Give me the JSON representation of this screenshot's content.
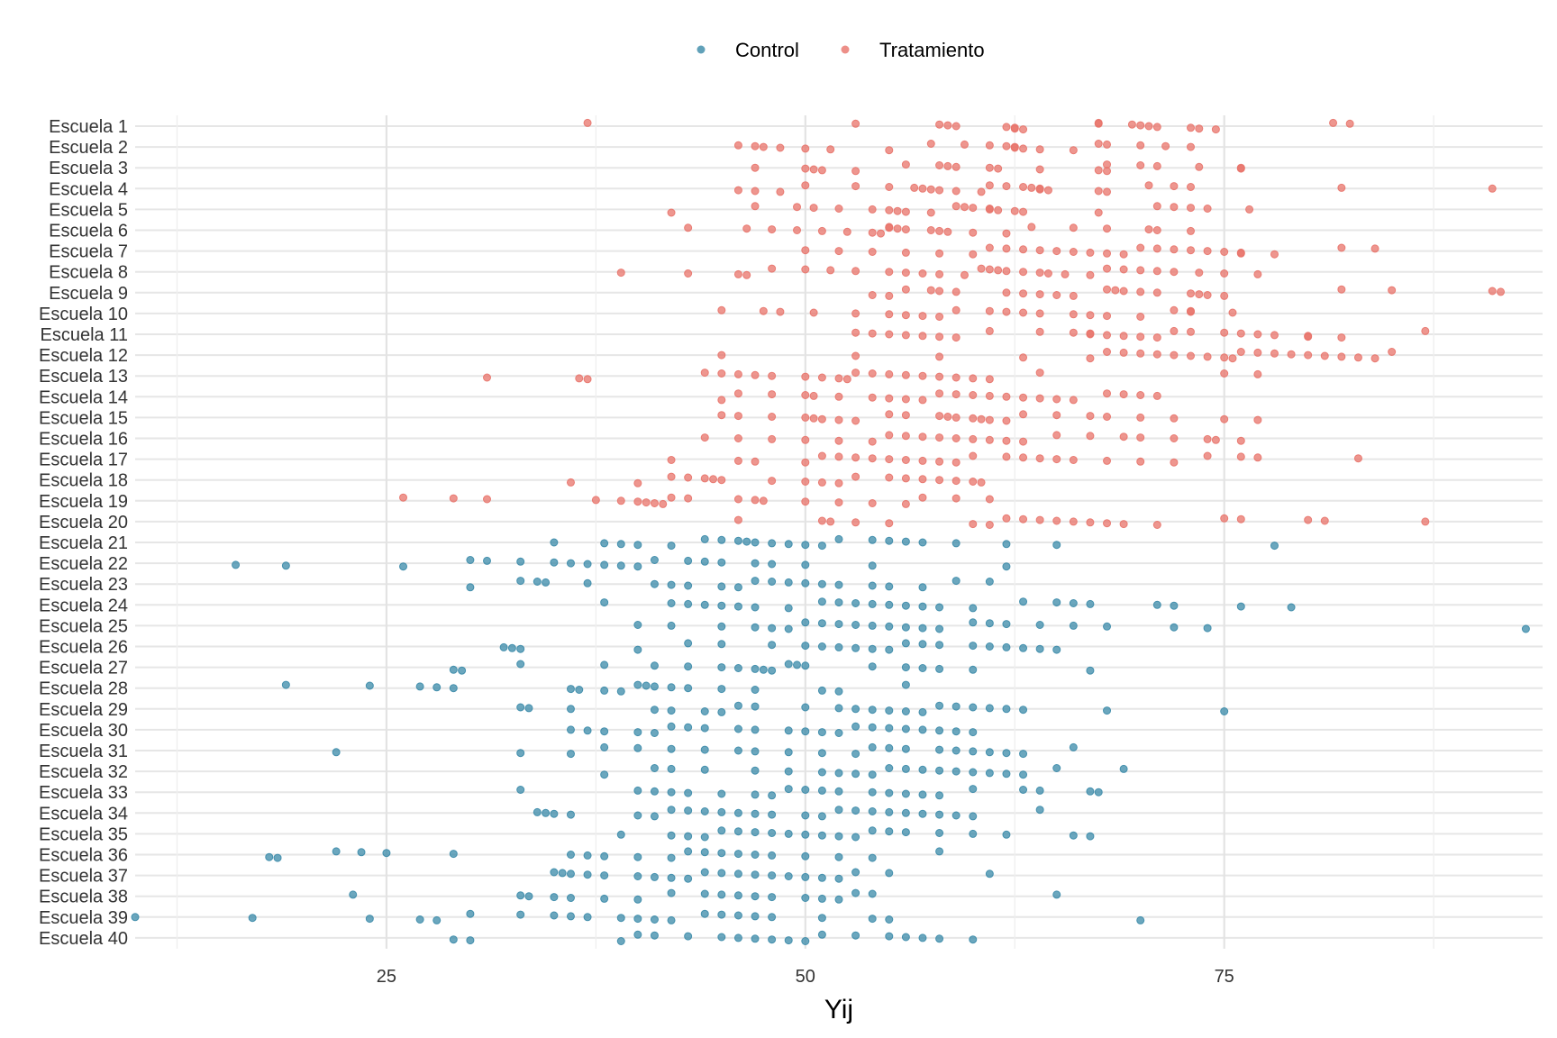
{
  "chart_data": {
    "type": "scatter",
    "title": "",
    "xlabel": "Yij",
    "ylabel": "",
    "xlim": [
      10,
      94
    ],
    "x_ticks": [
      "25",
      "50",
      "75"
    ],
    "x_tick_values": [
      25,
      50,
      75
    ],
    "grid": true,
    "legend_placement": "top",
    "categories": [
      "Escuela 1",
      "Escuela 2",
      "Escuela 3",
      "Escuela 4",
      "Escuela 5",
      "Escuela 6",
      "Escuela 7",
      "Escuela 8",
      "Escuela 9",
      "Escuela 10",
      "Escuela 11",
      "Escuela 12",
      "Escuela 13",
      "Escuela 14",
      "Escuela 15",
      "Escuela 16",
      "Escuela 17",
      "Escuela 18",
      "Escuela 19",
      "Escuela 20",
      "Escuela 21",
      "Escuela 22",
      "Escuela 23",
      "Escuela 24",
      "Escuela 25",
      "Escuela 26",
      "Escuela 27",
      "Escuela 28",
      "Escuela 29",
      "Escuela 30",
      "Escuela 31",
      "Escuela 32",
      "Escuela 33",
      "Escuela 34",
      "Escuela 35",
      "Escuela 36",
      "Escuela 37",
      "Escuela 38",
      "Escuela 39",
      "Escuela 40"
    ],
    "series": [
      {
        "name": "Control",
        "color": "#3a8aa8"
      },
      {
        "name": "Tratamiento",
        "color": "#e8736a"
      }
    ],
    "points": {
      "Escuela 1": [
        37,
        53,
        58,
        58.5,
        59,
        62,
        62.5,
        62.5,
        63,
        67.5,
        67.5,
        69.5,
        70,
        70.5,
        71,
        73,
        73.5,
        74.5,
        81.5,
        82.5
      ],
      "Escuela 2": [
        46,
        47,
        47.5,
        48.5,
        50,
        51.5,
        55,
        57.5,
        59.5,
        61,
        62,
        62.5,
        62.5,
        63,
        64,
        66,
        67.5,
        68,
        70,
        71.5,
        73
      ],
      "Escuela 3": [
        47,
        50,
        50.5,
        51,
        53,
        56,
        58,
        58.5,
        59,
        61,
        61.5,
        64,
        67.5,
        68,
        68,
        70,
        71,
        73.5,
        76,
        76
      ],
      "Escuela 4": [
        46,
        47,
        48.5,
        50,
        53,
        55,
        56.5,
        57,
        57.5,
        58,
        59,
        60.5,
        61,
        62,
        63,
        63.5,
        64,
        64,
        64.5,
        67.5,
        68,
        70.5,
        72,
        73,
        82,
        91
      ],
      "Escuela 5": [
        42,
        47,
        49.5,
        50.5,
        52,
        54,
        55,
        55.5,
        56,
        57.5,
        59,
        59.5,
        60,
        61,
        61,
        61.5,
        62.5,
        63,
        67.5,
        71,
        72,
        73,
        74,
        76.5
      ],
      "Escuela 6": [
        43,
        46.5,
        48,
        49.5,
        51,
        52.5,
        54,
        54.5,
        55,
        55,
        55.5,
        56,
        57.5,
        58,
        58.5,
        60,
        62,
        63.5,
        66,
        68,
        70.5,
        71,
        73
      ],
      "Escuela 7": [
        50,
        52,
        54,
        56,
        58,
        60,
        61,
        62,
        63,
        64,
        65,
        66,
        67,
        68,
        69,
        70,
        71,
        72,
        73,
        74,
        75,
        76,
        76,
        78,
        82,
        84
      ],
      "Escuela 8": [
        39,
        43,
        46,
        46.5,
        48,
        50,
        51.5,
        53,
        55,
        56,
        57,
        58,
        59.5,
        60.5,
        61,
        61.5,
        62,
        63,
        64,
        64.5,
        65.5,
        67,
        68,
        69,
        70,
        71,
        72,
        73.5,
        75,
        77
      ],
      "Escuela 9": [
        54,
        55,
        56,
        57.5,
        58,
        59,
        62,
        63,
        64,
        65,
        66,
        68,
        68.5,
        69,
        70,
        71,
        73,
        73.5,
        74,
        75,
        82,
        85,
        91,
        91.5
      ],
      "Escuela 10": [
        45,
        47.5,
        48.5,
        50.5,
        53,
        55,
        56,
        57,
        58,
        59,
        61,
        62,
        63,
        64,
        66,
        67,
        68,
        70,
        72,
        73,
        73,
        75.5
      ],
      "Escuela 11": [
        53,
        54,
        55,
        56,
        57,
        58,
        59,
        61,
        64,
        66,
        67,
        67,
        68,
        69,
        70,
        71,
        72,
        73,
        75,
        76,
        77,
        78,
        80,
        80,
        82,
        87
      ],
      "Escuela 12": [
        45,
        53,
        58,
        63,
        67,
        68,
        69,
        70,
        71,
        72,
        73,
        74,
        75,
        75.5,
        76,
        77,
        78,
        79,
        80,
        81,
        82,
        83,
        84,
        85
      ],
      "Escuela 13": [
        31,
        36.5,
        37,
        44,
        45,
        46,
        47,
        48,
        50,
        51,
        52,
        52.5,
        53,
        54,
        55,
        56,
        57,
        58,
        59,
        60,
        61,
        64,
        75,
        77
      ],
      "Escuela 14": [
        45,
        46,
        48,
        50,
        50.5,
        52,
        54,
        55,
        56,
        57,
        58,
        59,
        60,
        61,
        62,
        63,
        64,
        65,
        66,
        68,
        69,
        70,
        71
      ],
      "Escuela 15": [
        45,
        46,
        48,
        50,
        50.5,
        51,
        52,
        53,
        55,
        56,
        58,
        58.5,
        59,
        60,
        60.5,
        61,
        62,
        63,
        65,
        67,
        68,
        70,
        72,
        75,
        77
      ],
      "Escuela 16": [
        44,
        46,
        48,
        50,
        52,
        54,
        55,
        56,
        57,
        58,
        59,
        60,
        61,
        62,
        63,
        65,
        67,
        69,
        70,
        72,
        74,
        74.5,
        76
      ],
      "Escuela 17": [
        42,
        46,
        47,
        50,
        51,
        52,
        53,
        54,
        55,
        56,
        57,
        58,
        59,
        60,
        62,
        63,
        64,
        65,
        66,
        68,
        70,
        72,
        74,
        76,
        77,
        83
      ],
      "Escuela 18": [
        36,
        40,
        42,
        43,
        44,
        44.5,
        45,
        48,
        50,
        51,
        52,
        53,
        55,
        56,
        57,
        58,
        59,
        60,
        60.5
      ],
      "Escuela 19": [
        26,
        29,
        31,
        37.5,
        39,
        40,
        40.5,
        41,
        41.5,
        42,
        43,
        46,
        47,
        47.5,
        50,
        52,
        54,
        56,
        57,
        59,
        61
      ],
      "Escuela 20": [
        46,
        51,
        51.5,
        53,
        55,
        60,
        61,
        62,
        63,
        64,
        65,
        66,
        67,
        68,
        69,
        71,
        75,
        76,
        80,
        81,
        87
      ],
      "Escuela 21": [
        35,
        38,
        39,
        40,
        42,
        44,
        45,
        46,
        46.5,
        47,
        48,
        49,
        50,
        51,
        52,
        54,
        55,
        56,
        57,
        59,
        62,
        65,
        78
      ],
      "Escuela 22": [
        16,
        19,
        26,
        30,
        31,
        33,
        35,
        36,
        37,
        38,
        39,
        40,
        41,
        43,
        44,
        45,
        47,
        48,
        50,
        54,
        62
      ],
      "Escuela 23": [
        30,
        33,
        34,
        34.5,
        37,
        41,
        42,
        43,
        45,
        46,
        47,
        48,
        49,
        50,
        51,
        52,
        54,
        55,
        57,
        59,
        61
      ],
      "Escuela 24": [
        38,
        42,
        43,
        44,
        45,
        46,
        47,
        49,
        51,
        52,
        53,
        54,
        55,
        56,
        57,
        58,
        60,
        63,
        65,
        66,
        67,
        71,
        72,
        76,
        79
      ],
      "Escuela 25": [
        40,
        42,
        45,
        47,
        48,
        49,
        50,
        51,
        52,
        53,
        54,
        55,
        56,
        57,
        58,
        60,
        61,
        62,
        64,
        66,
        68,
        72,
        74,
        93
      ],
      "Escuela 26": [
        32,
        32.5,
        33,
        40,
        43,
        45,
        48,
        50,
        51,
        52,
        53,
        54,
        55,
        56,
        57,
        58,
        60,
        61,
        62,
        63,
        64,
        65
      ],
      "Escuela 27": [
        29,
        29.5,
        33,
        38,
        41,
        43,
        45,
        46,
        47,
        47.5,
        48,
        49,
        49.5,
        50,
        54,
        56,
        57,
        58,
        60,
        67
      ],
      "Escuela 28": [
        19,
        24,
        27,
        28,
        29,
        36,
        36.5,
        38,
        39,
        40,
        40.5,
        41,
        42,
        43,
        45,
        47,
        51,
        52,
        56
      ],
      "Escuela 29": [
        33,
        33.5,
        36,
        41,
        42,
        44,
        45,
        46,
        47,
        50,
        52,
        53,
        54,
        55,
        56,
        57,
        58,
        59,
        60,
        61,
        62,
        63,
        68,
        75
      ],
      "Escuela 30": [
        36,
        37,
        38,
        40,
        41,
        42,
        43,
        44,
        46,
        47,
        49,
        50,
        51,
        52,
        53,
        54,
        55,
        56,
        57,
        58,
        59,
        60
      ],
      "Escuela 31": [
        22,
        33,
        36,
        38,
        40,
        42,
        44,
        46,
        47,
        49,
        51,
        53,
        54,
        55,
        56,
        58,
        59,
        60,
        61,
        62,
        63,
        66
      ],
      "Escuela 32": [
        38,
        41,
        42,
        44,
        47,
        49,
        51,
        52,
        53,
        54,
        55,
        56,
        57,
        58,
        59,
        60,
        61,
        62,
        63,
        65,
        69
      ],
      "Escuela 33": [
        33,
        40,
        41,
        42,
        43,
        45,
        47,
        48,
        49,
        50,
        51,
        52,
        54,
        55,
        56,
        57,
        58,
        60,
        63,
        64,
        67,
        67.5
      ],
      "Escuela 34": [
        34,
        34.5,
        35,
        36,
        40,
        41,
        42,
        43,
        44,
        45,
        46,
        47,
        48,
        50,
        51,
        52,
        53,
        54,
        55,
        56,
        57,
        58,
        59,
        60,
        64
      ],
      "Escuela 35": [
        39,
        42,
        43,
        44,
        45,
        46,
        47,
        48,
        49,
        50,
        51,
        52,
        53,
        54,
        55,
        56,
        58,
        60,
        62,
        66,
        67
      ],
      "Escuela 36": [
        18,
        18.5,
        22,
        23.5,
        25,
        29,
        36,
        37,
        38,
        40,
        42,
        43,
        44,
        45,
        46,
        47,
        48,
        50,
        52,
        54,
        58
      ],
      "Escuela 37": [
        35,
        35.5,
        36,
        37,
        38,
        40,
        41,
        42,
        43,
        44,
        45,
        46,
        47,
        48,
        49,
        50,
        51,
        52,
        53,
        55,
        61
      ],
      "Escuela 38": [
        23,
        33,
        33.5,
        35,
        36,
        38,
        40,
        42,
        44,
        45,
        46,
        47,
        48,
        50,
        51,
        52,
        53,
        54,
        65
      ],
      "Escuela 39": [
        10,
        17,
        24,
        27,
        28,
        30,
        33,
        35,
        36,
        37,
        39,
        40,
        41,
        42,
        44,
        45,
        46,
        47,
        48,
        51,
        54,
        55,
        70
      ],
      "Escuela 40": [
        29,
        30,
        39,
        40,
        41,
        43,
        45,
        46,
        47,
        48,
        49,
        50,
        51,
        53,
        55,
        56,
        57,
        58,
        60
      ]
    }
  }
}
